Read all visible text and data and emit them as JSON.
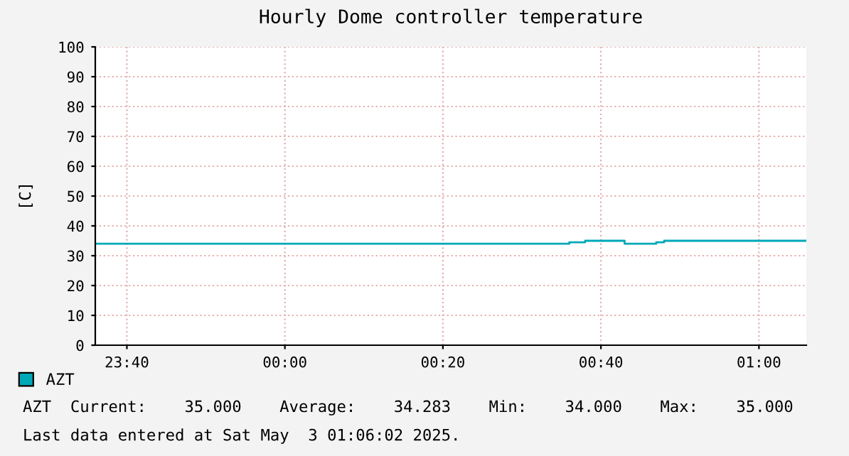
{
  "chart_data": {
    "type": "step",
    "title": "Hourly Dome controller temperature",
    "ylabel": "[C]",
    "x": [
      "2025-05-02T23:36",
      "2025-05-03T00:36",
      "2025-05-03T00:38",
      "2025-05-03T00:43",
      "2025-05-03T00:47",
      "2025-05-03T00:48",
      "2025-05-03T01:06"
    ],
    "series": [
      {
        "name": "AZT",
        "color": "#00a8b8",
        "values": [
          34,
          34.5,
          35,
          34,
          34.5,
          35,
          35
        ]
      }
    ],
    "xlim": [
      "2025-05-02T23:36",
      "2025-05-03T01:06"
    ],
    "xticks": [
      {
        "value": "2025-05-02T23:40",
        "label": "23:40"
      },
      {
        "value": "2025-05-03T00:00",
        "label": "00:00"
      },
      {
        "value": "2025-05-03T00:20",
        "label": "00:20"
      },
      {
        "value": "2025-05-03T00:40",
        "label": "00:40"
      },
      {
        "value": "2025-05-03T01:00",
        "label": "01:00"
      }
    ],
    "ylim": [
      0,
      100
    ],
    "yticks": [
      0,
      10,
      20,
      30,
      40,
      50,
      60,
      70,
      80,
      90,
      100
    ],
    "grid": true,
    "legend": "bottom left",
    "annotations": [
      "AZT  Current:    35.000    Average:    34.283    Min:    34.000    Max:    35.000",
      "Last data entered at Sat May  3 01:06:02 2025."
    ]
  }
}
